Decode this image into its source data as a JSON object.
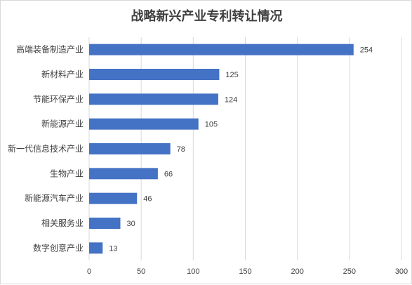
{
  "chart_data": {
    "type": "bar",
    "orientation": "horizontal",
    "title": "战略新兴产业专利转让情况",
    "categories": [
      "高端装备制造产业",
      "新材料产业",
      "节能环保产业",
      "新能源产业",
      "新一代信息技术产业",
      "生物产业",
      "新能源汽车产业",
      "相关服务业",
      "数字创意产业"
    ],
    "values": [
      254,
      125,
      124,
      105,
      78,
      66,
      46,
      30,
      13
    ],
    "xlim": [
      0,
      300
    ],
    "xticks": [
      0,
      50,
      100,
      150,
      200,
      250,
      300
    ],
    "grid": true,
    "legend": false,
    "bar_color": "#4472c4",
    "gridline_color": "#d9d9d9",
    "text_color": "#404040"
  }
}
